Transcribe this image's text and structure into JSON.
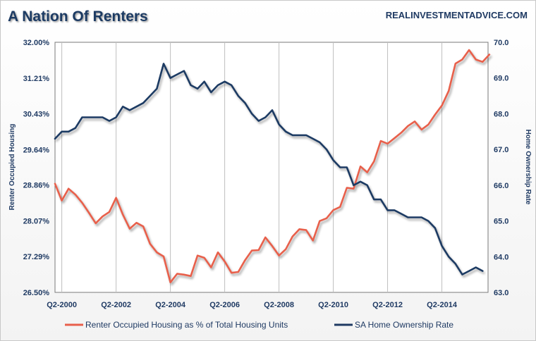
{
  "chart_data": {
    "type": "line",
    "title": "A Nation Of Renters",
    "source": "REALINVESTMENTADVICE.COM",
    "xlabel": "",
    "x_tick_labels": [
      "Q2-2000",
      "Q2-2002",
      "Q2-2004",
      "Q2-2006",
      "Q2-2008",
      "Q2-2010",
      "Q2-2012",
      "Q2-2014"
    ],
    "x_start": 2000.0,
    "x_step": 0.25,
    "xlim": [
      2000.0,
      2015.95
    ],
    "left_axis": {
      "label": "Renter Occupied Housing",
      "ylim": [
        26.5,
        32.0
      ],
      "ticks": [
        "26.50%",
        "27.29%",
        "28.07%",
        "28.86%",
        "29.64%",
        "30.43%",
        "31.21%",
        "32.00%"
      ],
      "tick_values": [
        26.5,
        27.29,
        28.07,
        28.86,
        29.64,
        30.43,
        31.21,
        32.0
      ]
    },
    "right_axis": {
      "label": "Home Ownership Rate",
      "ylim": [
        63.0,
        70.0
      ],
      "ticks": [
        "63.0",
        "64.0",
        "65.0",
        "66.0",
        "67.0",
        "68.0",
        "69.0",
        "70.0"
      ],
      "tick_values": [
        63.0,
        64.0,
        65.0,
        66.0,
        67.0,
        68.0,
        69.0,
        70.0
      ]
    },
    "series": [
      {
        "name": "Renter Occupied Housing as % of Total Housing Units",
        "axis": "left",
        "color": "#e8604c",
        "values": [
          28.89,
          28.52,
          28.78,
          28.65,
          28.47,
          28.25,
          28.02,
          28.17,
          28.27,
          28.58,
          28.21,
          27.9,
          28.03,
          27.95,
          27.57,
          27.38,
          27.29,
          26.72,
          26.91,
          26.89,
          26.86,
          27.31,
          27.26,
          27.05,
          27.38,
          27.18,
          26.93,
          26.95,
          27.21,
          27.42,
          27.43,
          27.71,
          27.52,
          27.31,
          27.45,
          27.73,
          27.89,
          27.87,
          27.64,
          28.07,
          28.13,
          28.31,
          28.38,
          28.8,
          28.78,
          29.27,
          29.14,
          29.38,
          29.83,
          29.77,
          29.89,
          30.01,
          30.16,
          30.26,
          30.08,
          30.19,
          30.41,
          30.61,
          30.93,
          31.53,
          31.62,
          31.83,
          31.62,
          31.57,
          31.73
        ]
      },
      {
        "name": "SA Home Ownership Rate",
        "axis": "right",
        "color": "#1f3a63",
        "values": [
          67.3,
          67.5,
          67.5,
          67.6,
          67.9,
          67.9,
          67.9,
          67.9,
          67.8,
          67.9,
          68.2,
          68.1,
          68.2,
          68.3,
          68.5,
          68.7,
          69.4,
          69.0,
          69.1,
          69.2,
          68.8,
          68.7,
          68.9,
          68.6,
          68.8,
          68.9,
          68.8,
          68.5,
          68.3,
          68.0,
          67.8,
          67.9,
          68.1,
          67.7,
          67.5,
          67.4,
          67.4,
          67.4,
          67.3,
          67.2,
          67.0,
          66.7,
          66.5,
          66.5,
          66.0,
          66.1,
          66.0,
          65.6,
          65.6,
          65.3,
          65.3,
          65.2,
          65.1,
          65.1,
          65.1,
          65.0,
          64.8,
          64.3,
          64.0,
          63.8,
          63.5,
          63.6,
          63.7,
          63.6
        ]
      }
    ],
    "legend": [
      "Renter Occupied Housing as % of Total Housing Units",
      "SA Home Ownership Rate"
    ],
    "legend_position": "bottom",
    "grid": "vertical"
  }
}
